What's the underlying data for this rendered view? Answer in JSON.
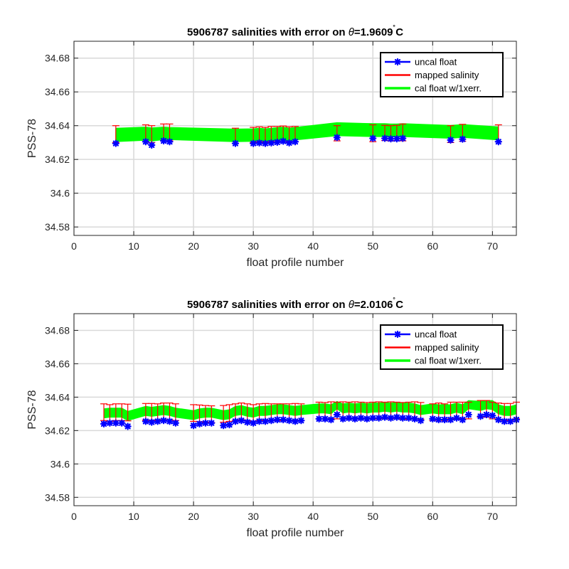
{
  "chart_data": [
    {
      "type": "line",
      "title": "5906787 salinities with error on θ=1.9609˚C",
      "title_parts": {
        "prefix": "5906787 salinities with error on ",
        "theta": "θ",
        "value": "=1.9609",
        "degree": "˚",
        "unit": "C"
      },
      "xlabel": "float profile number",
      "ylabel": "PSS-78",
      "xlim": [
        0,
        74
      ],
      "ylim": [
        34.575,
        34.69
      ],
      "xticks": [
        0,
        10,
        20,
        30,
        40,
        50,
        60,
        70
      ],
      "yticks": [
        34.58,
        34.6,
        34.62,
        34.64,
        34.66,
        34.68
      ],
      "ytick_labels": [
        "34.58",
        "34.6",
        "34.62",
        "34.64",
        "34.66",
        "34.68"
      ],
      "grid": true,
      "legend_position": "top-right",
      "legend": [
        "uncal float",
        "mapped salinity",
        "cal float w/1xerr."
      ],
      "colors": {
        "uncal": "#0000ff",
        "mapped": "#ff0000",
        "cal": "#00ff00"
      },
      "series": [
        {
          "name": "uncal float",
          "x": [
            7,
            12,
            13,
            15,
            16,
            27,
            30,
            31,
            32,
            33,
            34,
            35,
            36,
            37,
            44,
            50,
            52,
            53,
            54,
            55,
            63,
            65,
            71
          ],
          "values": [
            34.6295,
            34.6305,
            34.6285,
            34.631,
            34.6305,
            34.6295,
            34.6295,
            34.6298,
            34.6295,
            34.6298,
            34.6302,
            34.6308,
            34.6298,
            34.6305,
            34.633,
            34.6325,
            34.6325,
            34.6322,
            34.6322,
            34.6325,
            34.6315,
            34.632,
            34.6305
          ]
        },
        {
          "name": "mapped salinity",
          "x": [
            7,
            12,
            13,
            15,
            16,
            27,
            30,
            31,
            32,
            33,
            34,
            35,
            36,
            37,
            44,
            50,
            52,
            53,
            54,
            55,
            63,
            65,
            71
          ],
          "values": [
            34.635,
            34.6355,
            34.635,
            34.636,
            34.636,
            34.634,
            34.6345,
            34.6348,
            34.6345,
            34.635,
            34.635,
            34.6353,
            34.6348,
            34.635,
            34.6355,
            34.6355,
            34.6357,
            34.6355,
            34.6357,
            34.636,
            34.635,
            34.6358,
            34.6355
          ],
          "error": [
            0.005,
            0.005,
            0.005,
            0.005,
            0.005,
            0.0045,
            0.0045,
            0.0045,
            0.0045,
            0.0045,
            0.0045,
            0.0045,
            0.0045,
            0.0045,
            0.0045,
            0.005,
            0.0045,
            0.0045,
            0.0045,
            0.005,
            0.005,
            0.005,
            0.005
          ]
        },
        {
          "name": "cal float w/1xerr.",
          "x": [
            7,
            12,
            13,
            15,
            16,
            27,
            30,
            31,
            32,
            33,
            34,
            35,
            36,
            37,
            44,
            50,
            52,
            53,
            54,
            55,
            63,
            65,
            71
          ],
          "upper": [
            34.6385,
            34.6392,
            34.6387,
            34.6392,
            34.639,
            34.638,
            34.6382,
            34.6385,
            34.6382,
            34.6385,
            34.6388,
            34.6392,
            34.6385,
            34.639,
            34.6418,
            34.6412,
            34.6412,
            34.641,
            34.641,
            34.6412,
            34.6402,
            34.6407,
            34.6393
          ],
          "lower": [
            34.6305,
            34.6313,
            34.6308,
            34.6318,
            34.6317,
            34.6305,
            34.6307,
            34.631,
            34.6307,
            34.631,
            34.6313,
            34.6318,
            34.631,
            34.6315,
            34.634,
            34.6335,
            34.6335,
            34.6333,
            34.6333,
            34.6335,
            34.6325,
            34.633,
            34.6315
          ]
        }
      ]
    },
    {
      "type": "line",
      "title": "5906787 salinities with error on θ=2.0106˚C",
      "title_parts": {
        "prefix": "5906787 salinities with error on ",
        "theta": "θ",
        "value": "=2.0106",
        "degree": "˚",
        "unit": "C"
      },
      "xlabel": "float profile number",
      "ylabel": "PSS-78",
      "xlim": [
        0,
        74
      ],
      "ylim": [
        34.575,
        34.69
      ],
      "xticks": [
        0,
        10,
        20,
        30,
        40,
        50,
        60,
        70
      ],
      "yticks": [
        34.58,
        34.6,
        34.62,
        34.64,
        34.66,
        34.68
      ],
      "ytick_labels": [
        "34.58",
        "34.6",
        "34.62",
        "34.64",
        "34.66",
        "34.68"
      ],
      "grid": true,
      "legend_position": "top-right",
      "legend": [
        "uncal float",
        "mapped salinity",
        "cal float w/1xerr."
      ],
      "colors": {
        "uncal": "#0000ff",
        "mapped": "#ff0000",
        "cal": "#00ff00"
      },
      "series": [
        {
          "name": "uncal float",
          "x": [
            5,
            6,
            7,
            8,
            9,
            12,
            13,
            14,
            15,
            16,
            17,
            20,
            21,
            22,
            23,
            25,
            26,
            27,
            28,
            29,
            30,
            31,
            32,
            33,
            34,
            35,
            36,
            37,
            38,
            41,
            42,
            43,
            44,
            45,
            46,
            47,
            48,
            49,
            50,
            51,
            52,
            53,
            54,
            55,
            56,
            57,
            58,
            60,
            61,
            62,
            63,
            64,
            65,
            66,
            68,
            69,
            70,
            71,
            72,
            73,
            74
          ],
          "values": [
            34.624,
            34.6245,
            34.6245,
            34.6245,
            34.6225,
            34.6255,
            34.625,
            34.6255,
            34.626,
            34.6255,
            34.6245,
            34.623,
            34.624,
            34.6245,
            34.6245,
            34.623,
            34.6235,
            34.6255,
            34.626,
            34.625,
            34.6245,
            34.6255,
            34.6255,
            34.626,
            34.6265,
            34.6265,
            34.626,
            34.6255,
            34.626,
            34.627,
            34.627,
            34.6265,
            34.6295,
            34.627,
            34.6275,
            34.627,
            34.6275,
            34.627,
            34.6275,
            34.6275,
            34.628,
            34.6275,
            34.628,
            34.6275,
            34.6275,
            34.627,
            34.626,
            34.627,
            34.6265,
            34.6265,
            34.6265,
            34.6275,
            34.6265,
            34.6295,
            34.6285,
            34.6295,
            34.629,
            34.6265,
            34.6255,
            34.6255,
            34.6265
          ]
        },
        {
          "name": "mapped salinity",
          "x": [
            5,
            6,
            7,
            8,
            9,
            12,
            13,
            14,
            15,
            16,
            17,
            20,
            21,
            22,
            23,
            25,
            26,
            27,
            28,
            29,
            30,
            31,
            32,
            33,
            34,
            35,
            36,
            37,
            38,
            41,
            42,
            43,
            44,
            45,
            46,
            47,
            48,
            49,
            50,
            51,
            52,
            53,
            54,
            55,
            56,
            57,
            58,
            60,
            61,
            62,
            63,
            64,
            65,
            66,
            68,
            69,
            70,
            71,
            72,
            73,
            74
          ],
          "values": [
            34.631,
            34.6305,
            34.631,
            34.631,
            34.6308,
            34.6312,
            34.6312,
            34.631,
            34.6315,
            34.6315,
            34.631,
            34.6305,
            34.6303,
            34.63,
            34.6298,
            34.63,
            34.6305,
            34.631,
            34.6315,
            34.631,
            34.6305,
            34.631,
            34.6312,
            34.631,
            34.631,
            34.631,
            34.631,
            34.6312,
            34.631,
            34.632,
            34.6318,
            34.6322,
            34.632,
            34.6322,
            34.632,
            34.6322,
            34.632,
            34.6318,
            34.632,
            34.6322,
            34.632,
            34.6322,
            34.632,
            34.6318,
            34.632,
            34.6322,
            34.6318,
            34.631,
            34.6315,
            34.631,
            34.632,
            34.632,
            34.632,
            34.632,
            34.633,
            34.633,
            34.632,
            34.6315,
            34.6312,
            34.6312,
            34.632
          ],
          "error": [
            0.005,
            0.005,
            0.005,
            0.005,
            0.005,
            0.005,
            0.005,
            0.005,
            0.005,
            0.005,
            0.005,
            0.005,
            0.005,
            0.005,
            0.005,
            0.005,
            0.005,
            0.005,
            0.005,
            0.005,
            0.005,
            0.005,
            0.005,
            0.005,
            0.005,
            0.005,
            0.005,
            0.005,
            0.005,
            0.005,
            0.005,
            0.005,
            0.005,
            0.005,
            0.005,
            0.005,
            0.005,
            0.005,
            0.005,
            0.005,
            0.005,
            0.005,
            0.005,
            0.005,
            0.005,
            0.005,
            0.005,
            0.005,
            0.005,
            0.005,
            0.005,
            0.005,
            0.005,
            0.005,
            0.005,
            0.005,
            0.005,
            0.005,
            0.005,
            0.005,
            0.005
          ]
        },
        {
          "name": "cal float w/1xerr.",
          "x": [
            5,
            6,
            7,
            8,
            9,
            12,
            13,
            14,
            15,
            16,
            17,
            20,
            21,
            22,
            23,
            25,
            26,
            27,
            28,
            29,
            30,
            31,
            32,
            33,
            34,
            35,
            36,
            37,
            38,
            41,
            42,
            43,
            44,
            45,
            46,
            47,
            48,
            49,
            50,
            51,
            52,
            53,
            54,
            55,
            56,
            57,
            58,
            60,
            61,
            62,
            63,
            64,
            65,
            66,
            68,
            69,
            70,
            71,
            72,
            73,
            74
          ],
          "upper": [
            34.633,
            34.6335,
            34.6335,
            34.6335,
            34.6315,
            34.6345,
            34.634,
            34.6345,
            34.635,
            34.6345,
            34.6335,
            34.632,
            34.633,
            34.6335,
            34.6335,
            34.632,
            34.6325,
            34.6345,
            34.635,
            34.634,
            34.6335,
            34.6345,
            34.6345,
            34.635,
            34.6355,
            34.6355,
            34.635,
            34.6345,
            34.635,
            34.636,
            34.636,
            34.6355,
            34.6375,
            34.636,
            34.6365,
            34.636,
            34.6365,
            34.636,
            34.6365,
            34.6365,
            34.637,
            34.6365,
            34.637,
            34.6365,
            34.6365,
            34.636,
            34.635,
            34.636,
            34.6355,
            34.6355,
            34.6355,
            34.6365,
            34.6355,
            34.638,
            34.6375,
            34.638,
            34.638,
            34.6355,
            34.6345,
            34.6345,
            34.6355
          ],
          "lower": [
            34.6275,
            34.628,
            34.628,
            34.628,
            34.626,
            34.629,
            34.6285,
            34.629,
            34.6295,
            34.629,
            34.628,
            34.6265,
            34.6275,
            34.628,
            34.628,
            34.6265,
            34.627,
            34.629,
            34.6295,
            34.6285,
            34.628,
            34.629,
            34.629,
            34.6295,
            34.63,
            34.63,
            34.6295,
            34.629,
            34.6295,
            34.6305,
            34.6305,
            34.63,
            34.633,
            34.6305,
            34.631,
            34.6305,
            34.631,
            34.6305,
            34.631,
            34.631,
            34.6315,
            34.631,
            34.6315,
            34.631,
            34.631,
            34.6305,
            34.6295,
            34.6305,
            34.63,
            34.63,
            34.63,
            34.631,
            34.63,
            34.633,
            34.632,
            34.633,
            34.6325,
            34.63,
            34.629,
            34.629,
            34.63
          ]
        }
      ]
    }
  ]
}
